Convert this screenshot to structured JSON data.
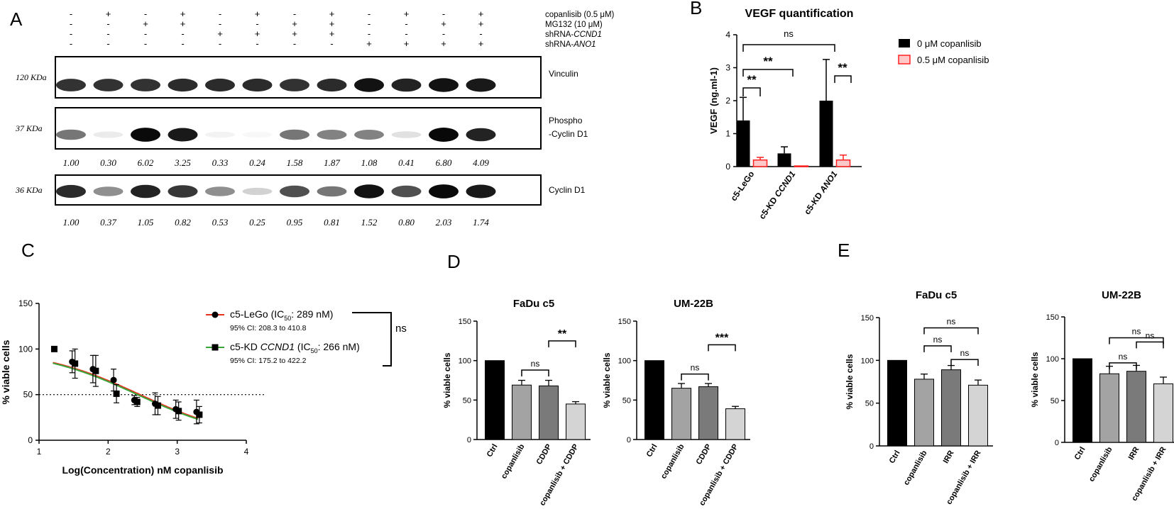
{
  "panel_letters": [
    "A",
    "B",
    "C",
    "D",
    "E"
  ],
  "chart_data": [
    {
      "panel": "A",
      "type": "table",
      "treatment_rows": [
        {
          "label": "copanlisib (0.5 μM)",
          "values": [
            "-",
            "+",
            "-",
            "+",
            "-",
            "+",
            "-",
            "+",
            "-",
            "+",
            "-",
            "+"
          ]
        },
        {
          "label": "MG132 (10 μM)",
          "values": [
            "-",
            "-",
            "+",
            "+",
            "-",
            "-",
            "+",
            "+",
            "-",
            "-",
            "+",
            "+"
          ]
        },
        {
          "label": "shRNA-",
          "label_italic": "CCND1",
          "values": [
            "-",
            "-",
            "-",
            "-",
            "+",
            "+",
            "+",
            "+",
            "-",
            "-",
            "-",
            "-"
          ]
        },
        {
          "label": "shRNA-",
          "label_italic": "ANO1",
          "values": [
            "-",
            "-",
            "-",
            "-",
            "-",
            "-",
            "-",
            "-",
            "+",
            "+",
            "+",
            "+"
          ]
        }
      ],
      "blots": [
        {
          "marker": "120 KDa",
          "name": "Vinculin",
          "intensities": [
            0.82,
            0.82,
            0.82,
            0.85,
            0.85,
            0.85,
            0.82,
            0.85,
            0.95,
            0.88,
            0.95,
            0.92
          ],
          "quant": []
        },
        {
          "marker": "37 KDa",
          "name": "Phospho",
          "name2": "-Cyclin D1",
          "intensities": [
            0.55,
            0.08,
            0.98,
            0.92,
            0.05,
            0.03,
            0.55,
            0.5,
            0.5,
            0.12,
            0.99,
            0.88
          ],
          "quant": [
            "1.00",
            "0.30",
            "6.02",
            "3.25",
            "0.33",
            "0.24",
            "1.58",
            "1.87",
            "1.08",
            "0.41",
            "6.80",
            "4.09"
          ]
        },
        {
          "marker": "36 KDa",
          "name": "Cyclin D1",
          "intensities": [
            0.85,
            0.45,
            0.88,
            0.8,
            0.45,
            0.18,
            0.7,
            0.55,
            0.95,
            0.7,
            0.98,
            0.92
          ],
          "quant": [
            "1.00",
            "0.37",
            "1.05",
            "0.82",
            "0.53",
            "0.25",
            "0.95",
            "0.81",
            "1.52",
            "0.80",
            "2.03",
            "1.74"
          ]
        }
      ]
    },
    {
      "panel": "B",
      "type": "bar",
      "title": "VEGF quantification",
      "ylabel": "VEGF (ng.ml-1)",
      "ylim": [
        0,
        4
      ],
      "yticks": [
        "0",
        "1",
        "2",
        "3",
        "4"
      ],
      "categories": [
        {
          "label": "c5-LeGo",
          "italic": ""
        },
        {
          "label": "c5-KD ",
          "italic": "CCND1"
        },
        {
          "label": "c5-KD ",
          "italic": "ANO1"
        }
      ],
      "series": [
        {
          "name": "0 μM copanlisib",
          "color": "#000000",
          "values": [
            1.4,
            0.4,
            2.0
          ],
          "errors": [
            0.7,
            0.2,
            1.25
          ]
        },
        {
          "name": "0.5 μM copanlisib",
          "color": "#ff2020",
          "values": [
            0.2,
            0.02,
            0.2
          ],
          "errors": [
            0.08,
            0.0,
            0.15
          ]
        }
      ],
      "significance": [
        {
          "text": "ns"
        },
        {
          "text": "**"
        },
        {
          "text": "**"
        },
        {
          "text": "**"
        }
      ],
      "legend_position": "right"
    },
    {
      "panel": "C",
      "type": "scatter",
      "xlabel": "Log(Concentration) nM copanlisib",
      "ylabel": "% viable cells",
      "xlim": [
        1,
        4
      ],
      "ylim": [
        0,
        150
      ],
      "xticks": [
        "1",
        "2",
        "3",
        "4"
      ],
      "yticks": [
        "0",
        "50",
        "100",
        "150"
      ],
      "reference_line": 50,
      "significance": "ns",
      "series": [
        {
          "name_prefix": "c5-LeGo (IC",
          "name_sub": "50",
          "name_suffix": ": 289 nM)",
          "ci": "95% CI: 208.3 to 410.8",
          "marker": "circle",
          "line_color": "#e8321e",
          "points": [
            [
              1.5,
              86,
              12
            ],
            [
              1.8,
              78,
              15
            ],
            [
              2.1,
              66,
              12
            ],
            [
              2.4,
              44,
              5
            ],
            [
              2.7,
              40,
              12
            ],
            [
              3.0,
              34,
              10
            ],
            [
              3.3,
              31,
              13
            ]
          ],
          "fit": {
            "top": 100,
            "bottom": 0,
            "logic50": 2.461,
            "hill": -0.6
          }
        },
        {
          "name_prefix": "c5-KD ",
          "name_italic": "CCND1",
          "name_prefix2": " (IC",
          "name_sub": "50",
          "name_suffix": ": 266 nM)",
          "ci": "95% CI: 175.2 to 422.2",
          "marker": "square",
          "line_color": "#3aa63a",
          "points": [
            [
              1.2,
              100,
              0
            ],
            [
              1.5,
              84,
              16
            ],
            [
              1.8,
              76,
              17
            ],
            [
              2.1,
              51,
              10
            ],
            [
              2.4,
              42,
              5
            ],
            [
              2.7,
              38,
              10
            ],
            [
              3.0,
              32,
              10
            ],
            [
              3.3,
              28,
              9
            ]
          ],
          "fit": {
            "top": 100,
            "bottom": 0,
            "logic50": 2.425,
            "hill": -0.6
          }
        }
      ]
    },
    {
      "panel": "D",
      "type": "bar",
      "title": "FaDu c5",
      "ylabel": "% viable cells",
      "ylim": [
        0,
        150
      ],
      "yticks": [
        "0",
        "50",
        "100",
        "150"
      ],
      "categories": [
        "Ctrl",
        "copanlisib",
        "CDDP",
        "copanlisib + CDDP"
      ],
      "values": [
        100,
        69,
        68,
        45
      ],
      "errors": [
        0,
        6,
        7,
        3
      ],
      "colors": [
        "#000000",
        "#a3a3a3",
        "#7a7a7a",
        "#d4d4d4"
      ],
      "significance": [
        {
          "text": "ns"
        },
        {
          "text": "**"
        }
      ]
    },
    {
      "panel": "D",
      "type": "bar",
      "title": "UM-22B",
      "ylabel": "% viable cells",
      "ylim": [
        0,
        150
      ],
      "yticks": [
        "0",
        "50",
        "100",
        "150"
      ],
      "categories": [
        "Ctrl",
        "copanlisib",
        "CDDP",
        "copanlisib + CDDP"
      ],
      "values": [
        100,
        65,
        67,
        39
      ],
      "errors": [
        0,
        6,
        4,
        3
      ],
      "colors": [
        "#000000",
        "#a3a3a3",
        "#7a7a7a",
        "#d4d4d4"
      ],
      "significance": [
        {
          "text": "ns"
        },
        {
          "text": "***"
        }
      ]
    },
    {
      "panel": "E",
      "type": "bar",
      "title": "FaDu c5",
      "ylabel": "% viable cells",
      "ylim": [
        0,
        150
      ],
      "yticks": [
        "0",
        "50",
        "100",
        "150"
      ],
      "categories": [
        "Ctrl",
        "copanlisib",
        "IRR",
        "copanlisib + IRR"
      ],
      "values": [
        100,
        78,
        89,
        71
      ],
      "errors": [
        0,
        6,
        5,
        6
      ],
      "colors": [
        "#000000",
        "#a3a3a3",
        "#7a7a7a",
        "#d4d4d4"
      ],
      "significance": [
        {
          "text": "ns"
        },
        {
          "text": "ns"
        },
        {
          "text": "ns"
        }
      ]
    },
    {
      "panel": "E",
      "type": "bar",
      "title": "UM-22B",
      "ylabel": "% viable cells",
      "ylim": [
        0,
        150
      ],
      "yticks": [
        "0",
        "50",
        "100",
        "150"
      ],
      "categories": [
        "Ctrl",
        "copanlisib",
        "IRR",
        "copanlisib + IRR"
      ],
      "values": [
        100,
        82,
        85,
        70
      ],
      "errors": [
        0,
        9,
        7,
        8
      ],
      "colors": [
        "#000000",
        "#a3a3a3",
        "#7a7a7a",
        "#d4d4d4"
      ],
      "significance": [
        {
          "text": "ns"
        },
        {
          "text": "ns"
        },
        {
          "text": "ns"
        }
      ]
    }
  ]
}
